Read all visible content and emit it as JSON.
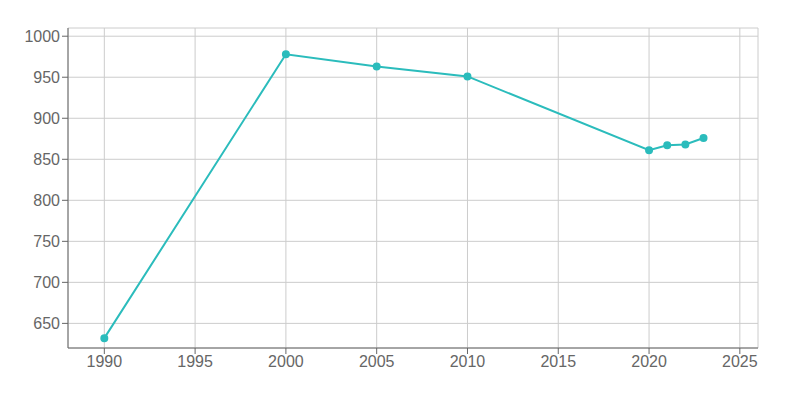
{
  "chart_data": {
    "type": "line",
    "x": [
      1990,
      2000,
      2005,
      2010,
      2020,
      2021,
      2022,
      2023
    ],
    "values": [
      632,
      978,
      963,
      951,
      861,
      867,
      868,
      876
    ],
    "color": "#2bbcbc",
    "marker": "o",
    "xlim": [
      1988,
      2026
    ],
    "xticks": [
      1990,
      1995,
      2000,
      2005,
      2010,
      2015,
      2020,
      2025
    ],
    "ylim": [
      620,
      1010
    ],
    "yticks": [
      650,
      700,
      750,
      800,
      850,
      900,
      950,
      1000
    ],
    "grid": true
  }
}
